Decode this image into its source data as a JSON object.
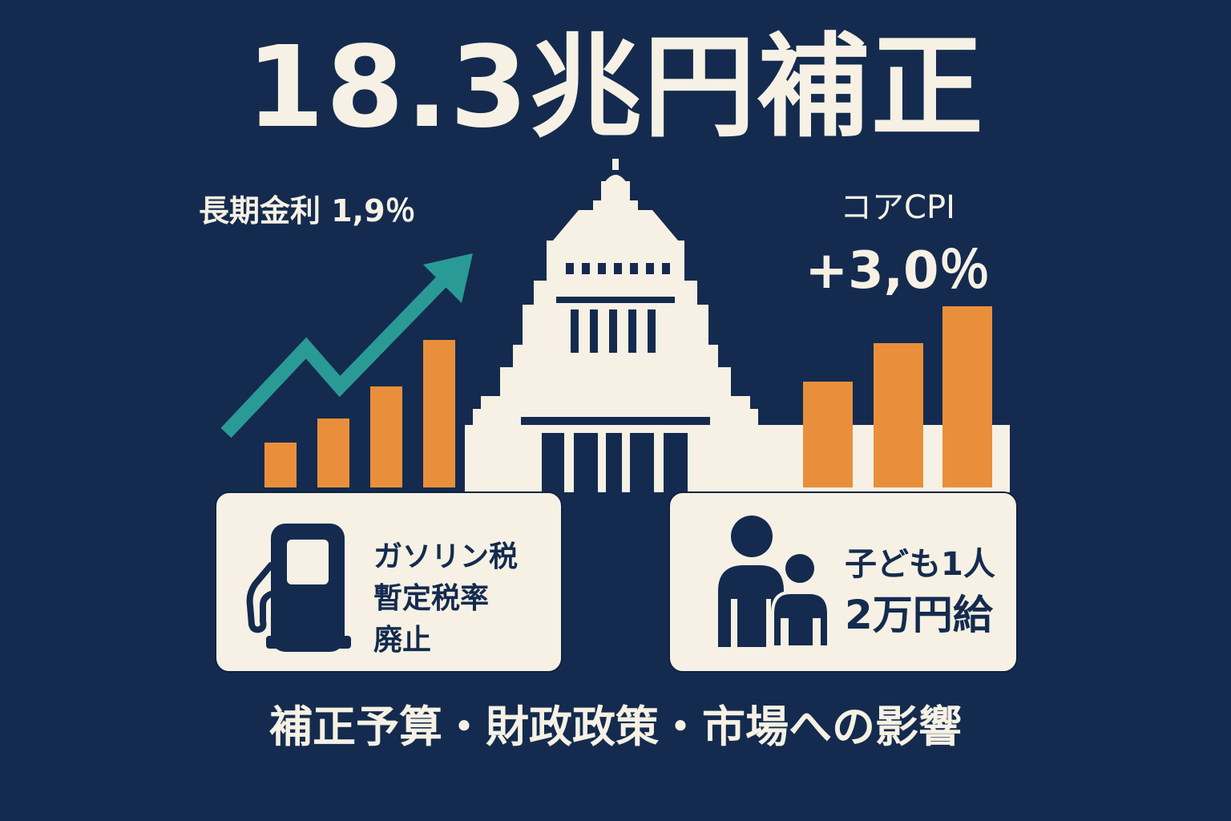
{
  "title": "18.3兆円補正",
  "left_indicator": {
    "label": "長期金利 1,9％"
  },
  "right_indicator": {
    "label": "コアCPI",
    "value": "+3,0％"
  },
  "cards": {
    "gasoline": {
      "line1": "ガソリン税",
      "line2": "暫定税率",
      "line3": "廃止",
      "icon": "fuel-pump-icon"
    },
    "child": {
      "line1": "子ども1人",
      "line2": "2万円給",
      "icon": "parent-child-icon"
    }
  },
  "footer": "補正予算・財政政策・市場への影響",
  "illustration": {
    "building": "national-diet-building-icon",
    "arrow": "trend-up-arrow-icon"
  },
  "colors": {
    "background": "#142b4f",
    "cream": "#f6f1e4",
    "bar_orange": "#e98f3c",
    "arrow_teal": "#2a9a97"
  }
}
